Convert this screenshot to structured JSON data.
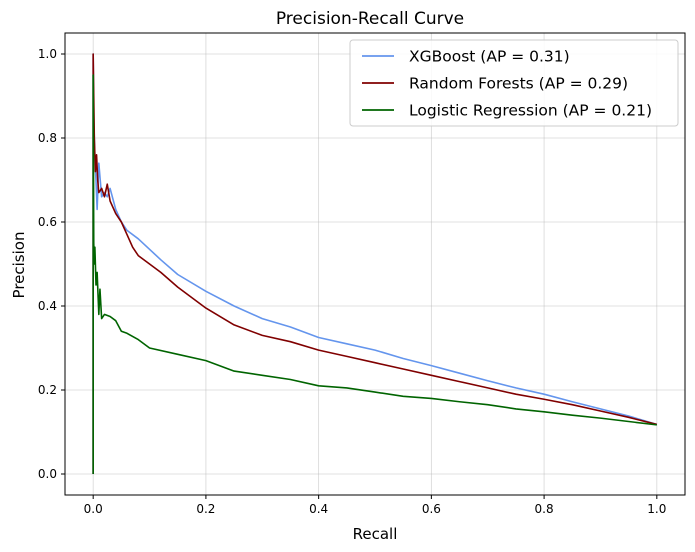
{
  "chart_data": {
    "type": "line",
    "title": "Precision-Recall Curve",
    "xlabel": "Recall",
    "ylabel": "Precision",
    "xlim": [
      -0.05,
      1.05
    ],
    "ylim": [
      -0.05,
      1.05
    ],
    "xticks": [
      0.0,
      0.2,
      0.4,
      0.6,
      0.8,
      1.0
    ],
    "xtick_labels": [
      "0.0",
      "0.2",
      "0.4",
      "0.6",
      "0.8",
      "1.0"
    ],
    "yticks": [
      0.0,
      0.2,
      0.4,
      0.6,
      0.8,
      1.0
    ],
    "ytick_labels": [
      "0.0",
      "0.2",
      "0.4",
      "0.6",
      "0.8",
      "1.0"
    ],
    "grid": true,
    "legend_position": "top-right",
    "series": [
      {
        "name": "XGBoost (AP = 0.31)",
        "color": "#6495ED",
        "points": [
          [
            0,
            0
          ],
          [
            0,
            1.0
          ],
          [
            0.001,
            0.85
          ],
          [
            0.003,
            0.75
          ],
          [
            0.005,
            0.7
          ],
          [
            0.007,
            0.63
          ],
          [
            0.01,
            0.74
          ],
          [
            0.015,
            0.66
          ],
          [
            0.02,
            0.67
          ],
          [
            0.025,
            0.66
          ],
          [
            0.03,
            0.68
          ],
          [
            0.04,
            0.63
          ],
          [
            0.05,
            0.6
          ],
          [
            0.06,
            0.58
          ],
          [
            0.08,
            0.56
          ],
          [
            0.1,
            0.535
          ],
          [
            0.12,
            0.51
          ],
          [
            0.15,
            0.475
          ],
          [
            0.2,
            0.435
          ],
          [
            0.25,
            0.4
          ],
          [
            0.3,
            0.37
          ],
          [
            0.35,
            0.35
          ],
          [
            0.4,
            0.325
          ],
          [
            0.45,
            0.31
          ],
          [
            0.5,
            0.295
          ],
          [
            0.55,
            0.275
          ],
          [
            0.6,
            0.258
          ],
          [
            0.65,
            0.24
          ],
          [
            0.7,
            0.222
          ],
          [
            0.75,
            0.205
          ],
          [
            0.8,
            0.19
          ],
          [
            0.85,
            0.172
          ],
          [
            0.9,
            0.155
          ],
          [
            0.95,
            0.138
          ],
          [
            1.0,
            0.118
          ]
        ]
      },
      {
        "name": "Random Forests (AP = 0.29)",
        "color": "#800000",
        "points": [
          [
            0,
            0
          ],
          [
            0,
            1.0
          ],
          [
            0.002,
            0.8
          ],
          [
            0.004,
            0.72
          ],
          [
            0.006,
            0.76
          ],
          [
            0.008,
            0.7
          ],
          [
            0.01,
            0.67
          ],
          [
            0.015,
            0.68
          ],
          [
            0.02,
            0.66
          ],
          [
            0.025,
            0.69
          ],
          [
            0.03,
            0.65
          ],
          [
            0.04,
            0.62
          ],
          [
            0.05,
            0.6
          ],
          [
            0.06,
            0.57
          ],
          [
            0.07,
            0.54
          ],
          [
            0.08,
            0.52
          ],
          [
            0.1,
            0.5
          ],
          [
            0.12,
            0.48
          ],
          [
            0.15,
            0.445
          ],
          [
            0.2,
            0.395
          ],
          [
            0.25,
            0.355
          ],
          [
            0.3,
            0.33
          ],
          [
            0.35,
            0.315
          ],
          [
            0.4,
            0.295
          ],
          [
            0.45,
            0.28
          ],
          [
            0.5,
            0.265
          ],
          [
            0.55,
            0.25
          ],
          [
            0.6,
            0.235
          ],
          [
            0.65,
            0.22
          ],
          [
            0.7,
            0.205
          ],
          [
            0.75,
            0.19
          ],
          [
            0.8,
            0.178
          ],
          [
            0.85,
            0.165
          ],
          [
            0.9,
            0.15
          ],
          [
            0.95,
            0.135
          ],
          [
            1.0,
            0.118
          ]
        ]
      },
      {
        "name": "Logistic Regression (AP = 0.21)",
        "color": "#006400",
        "points": [
          [
            0,
            0
          ],
          [
            0,
            0.95
          ],
          [
            0.001,
            0.55
          ],
          [
            0.002,
            0.5
          ],
          [
            0.003,
            0.54
          ],
          [
            0.005,
            0.45
          ],
          [
            0.007,
            0.48
          ],
          [
            0.01,
            0.38
          ],
          [
            0.012,
            0.44
          ],
          [
            0.015,
            0.37
          ],
          [
            0.02,
            0.38
          ],
          [
            0.03,
            0.375
          ],
          [
            0.04,
            0.365
          ],
          [
            0.05,
            0.34
          ],
          [
            0.06,
            0.335
          ],
          [
            0.08,
            0.32
          ],
          [
            0.1,
            0.3
          ],
          [
            0.15,
            0.285
          ],
          [
            0.2,
            0.27
          ],
          [
            0.25,
            0.245
          ],
          [
            0.3,
            0.235
          ],
          [
            0.35,
            0.225
          ],
          [
            0.4,
            0.21
          ],
          [
            0.45,
            0.205
          ],
          [
            0.5,
            0.195
          ],
          [
            0.55,
            0.185
          ],
          [
            0.6,
            0.18
          ],
          [
            0.65,
            0.172
          ],
          [
            0.7,
            0.165
          ],
          [
            0.75,
            0.155
          ],
          [
            0.8,
            0.148
          ],
          [
            0.85,
            0.14
          ],
          [
            0.9,
            0.133
          ],
          [
            0.95,
            0.125
          ],
          [
            1.0,
            0.117
          ]
        ]
      }
    ]
  }
}
